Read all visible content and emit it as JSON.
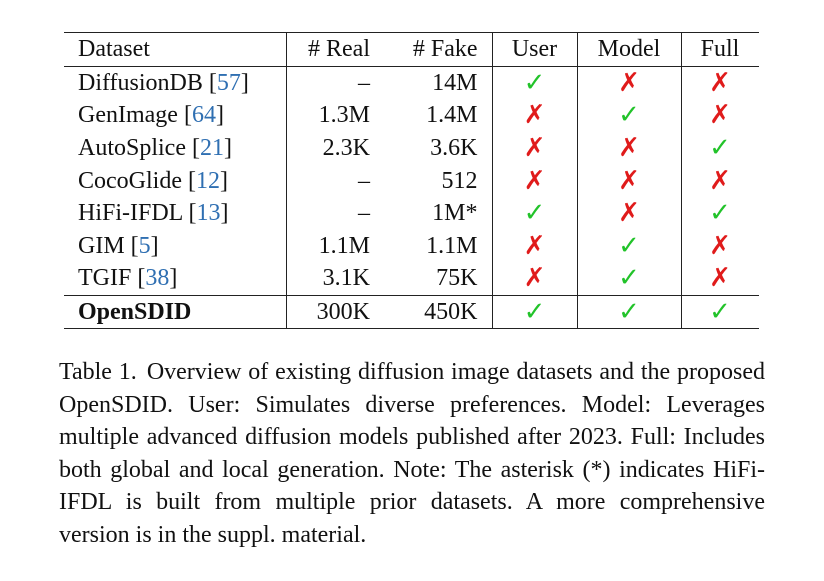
{
  "table": {
    "headers": {
      "dataset": "Dataset",
      "real": "# Real",
      "fake": "# Fake",
      "user": "User",
      "model": "Model",
      "full": "Full"
    },
    "rows": [
      {
        "name": "DiffusionDB",
        "cite": "57",
        "real": "–",
        "fake": "14M",
        "user": true,
        "model": false,
        "full": false
      },
      {
        "name": "GenImage",
        "cite": "64",
        "real": "1.3M",
        "fake": "1.4M",
        "user": false,
        "model": true,
        "full": false
      },
      {
        "name": "AutoSplice",
        "cite": "21",
        "real": "2.3K",
        "fake": "3.6K",
        "user": false,
        "model": false,
        "full": true
      },
      {
        "name": "CocoGlide",
        "cite": "12",
        "real": "–",
        "fake": "512",
        "user": false,
        "model": false,
        "full": false
      },
      {
        "name": "HiFi-IFDL",
        "cite": "13",
        "real": "–",
        "fake": "1M*",
        "user": true,
        "model": false,
        "full": true
      },
      {
        "name": "GIM",
        "cite": "5",
        "real": "1.1M",
        "fake": "1.1M",
        "user": false,
        "model": true,
        "full": false
      },
      {
        "name": "TGIF",
        "cite": "38",
        "real": "3.1K",
        "fake": "75K",
        "user": false,
        "model": true,
        "full": false
      }
    ],
    "ours": {
      "name": "OpenSDID",
      "real": "300K",
      "fake": "450K",
      "user": true,
      "model": true,
      "full": true
    },
    "marks": {
      "yes": "✓",
      "no": "✗"
    },
    "colors": {
      "yes": "#22c32a",
      "no": "#e01b1b",
      "cite": "#2f6fb2"
    }
  },
  "caption": {
    "label": "Table 1.",
    "text": "Overview of existing diffusion image datasets and the proposed OpenSDID. User: Simulates diverse preferences. Model: Leverages multiple advanced diffusion models published after 2023. Full: Includes both global and local generation. Note: The asterisk (*) indicates HiFi-IFDL is built from multiple prior datasets. A more comprehensive version is in the suppl. material."
  }
}
